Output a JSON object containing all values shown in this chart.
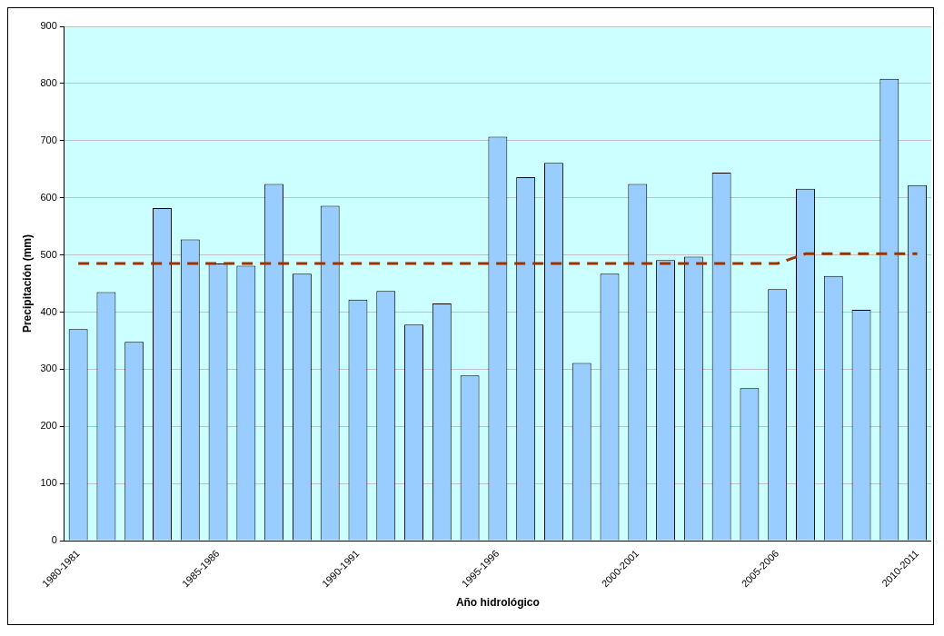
{
  "chart_data": {
    "type": "bar",
    "xlabel": "Año hidrológico",
    "ylabel": "Precipitación (mm)",
    "categories": [
      "1980-1981",
      null,
      null,
      null,
      null,
      "1985-1986",
      null,
      null,
      null,
      null,
      "1990-1991",
      null,
      null,
      null,
      null,
      "1995-1996",
      null,
      null,
      null,
      null,
      "2000-2001",
      null,
      null,
      null,
      null,
      "2005-2006",
      null,
      null,
      null,
      null,
      "2010-2011"
    ],
    "series": [
      {
        "color": "#99ccff",
        "values": [
          370,
          435,
          348,
          582,
          527,
          485,
          481,
          624,
          467,
          586,
          422,
          437,
          378,
          415,
          289,
          707,
          636,
          661,
          311,
          467,
          624,
          491,
          497,
          644,
          267,
          440,
          616,
          463,
          404,
          808,
          622
        ]
      },
      {
        "type": "line",
        "color": "#993300",
        "line_style": "dashed",
        "marker": "none",
        "values": [
          485,
          485,
          485,
          485,
          485,
          485,
          485,
          485,
          485,
          485,
          485,
          485,
          485,
          485,
          485,
          485,
          485,
          485,
          485,
          485,
          485,
          485,
          485,
          485,
          485,
          485,
          502,
          502,
          502,
          502,
          502
        ]
      }
    ],
    "ylim": [
      0,
      900
    ],
    "yticks": [
      0,
      100,
      200,
      300,
      400,
      500,
      600,
      700,
      800,
      900
    ],
    "grid": "y",
    "legend": false
  }
}
